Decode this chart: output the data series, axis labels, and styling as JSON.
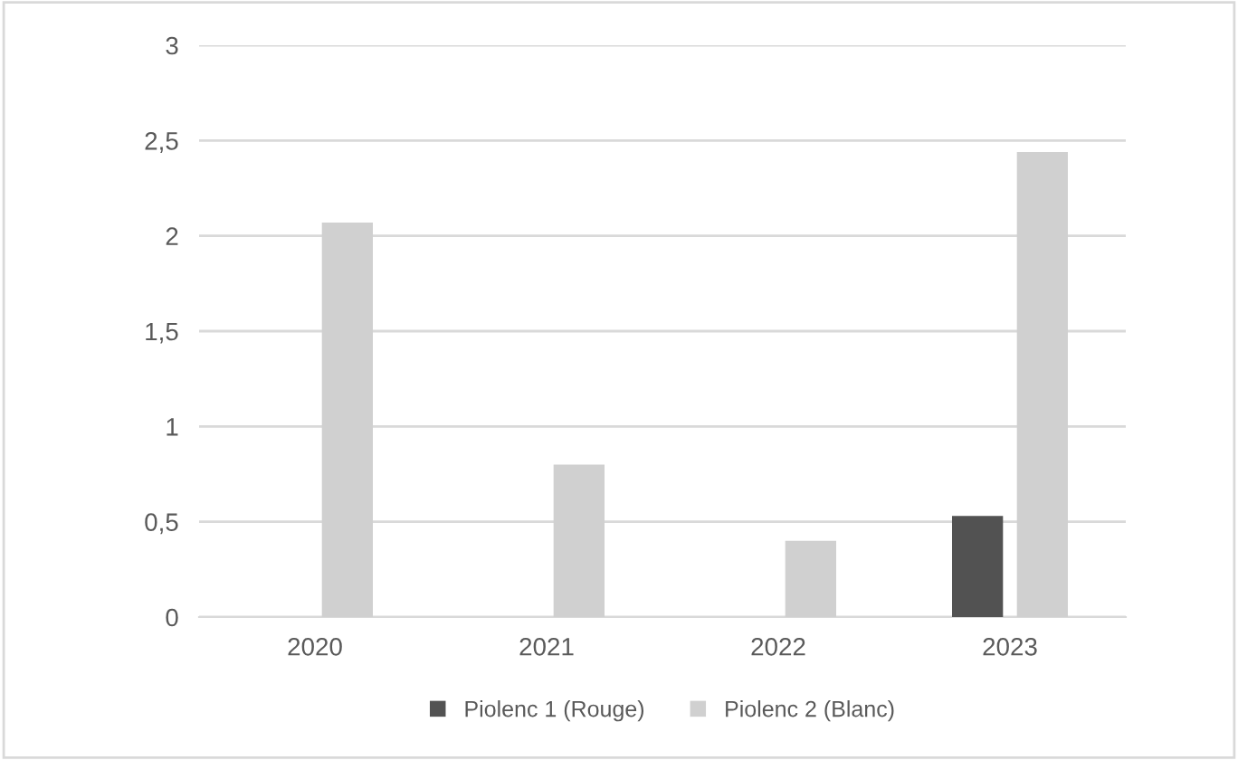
{
  "chart_data": {
    "type": "bar",
    "categories": [
      "2020",
      "2021",
      "2022",
      "2023"
    ],
    "series": [
      {
        "name": "Piolenc 1 (Rouge)",
        "color": "#525252",
        "values": [
          null,
          null,
          null,
          0.53
        ]
      },
      {
        "name": "Piolenc 2 (Blanc)",
        "color": "#d0d0d0",
        "values": [
          2.07,
          0.8,
          0.4,
          2.44
        ]
      }
    ],
    "ylim": [
      0,
      3
    ],
    "yticks": [
      0,
      {
        "value": 0.5,
        "label": "0,5"
      },
      1,
      {
        "value": 1.5,
        "label": "1,5"
      },
      2,
      {
        "value": 2.5,
        "label": "2,5"
      },
      3
    ],
    "grid": "y",
    "legend": "bottom"
  }
}
